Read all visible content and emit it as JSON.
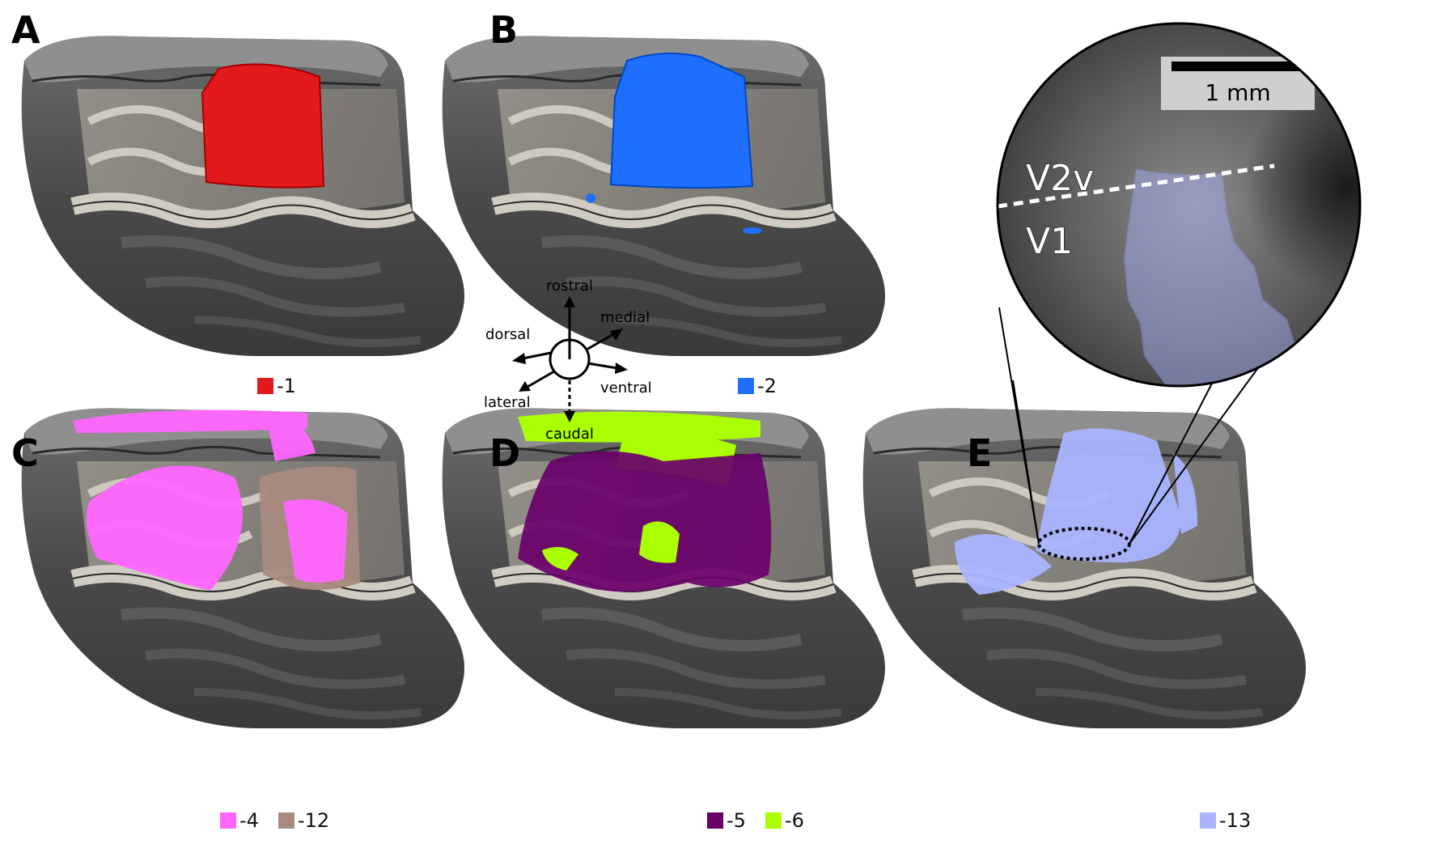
{
  "panels": {
    "A": {
      "letter": "A",
      "legend": [
        {
          "label": "1",
          "color": "#e31a1c"
        }
      ]
    },
    "B": {
      "letter": "B",
      "legend": [
        {
          "label": "2",
          "color": "#1f6fff"
        }
      ]
    },
    "C": {
      "letter": "C",
      "legend": [
        {
          "label": "4",
          "color": "#ff66ff"
        },
        {
          "label": "12",
          "color": "#a88a80"
        }
      ]
    },
    "D": {
      "letter": "D",
      "legend": [
        {
          "label": "5",
          "color": "#6a006a"
        },
        {
          "label": "6",
          "color": "#aaff00"
        }
      ]
    },
    "E": {
      "letter": "E",
      "legend": [
        {
          "label": "13",
          "color": "#aab4ff"
        }
      ]
    }
  },
  "orientation": {
    "rostral": "rostral",
    "medial": "medial",
    "dorsal": "dorsal",
    "ventral": "ventral",
    "lateral": "lateral",
    "caudal": "caudal"
  },
  "zoom": {
    "scale_bar_label": "1 mm",
    "region_upper": "V2v",
    "region_lower": "V1"
  },
  "colors": {
    "tissue_dark": "#4a4a4a",
    "tissue_light": "#bdb8ae",
    "region1": "#e31a1c",
    "region2": "#1f6fff",
    "region4": "#ff66ff",
    "region12": "#a88a80",
    "region5": "#6a006a",
    "region6": "#aaff00",
    "region13": "#aab4ff"
  }
}
